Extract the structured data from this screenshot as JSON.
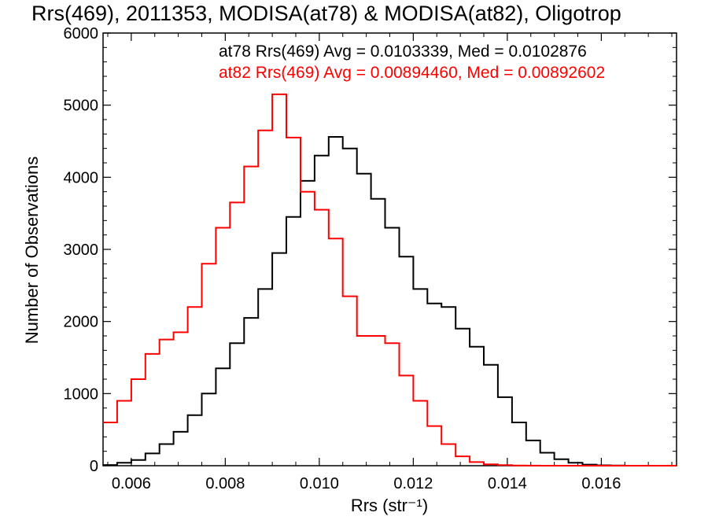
{
  "chart_data": {
    "type": "line",
    "title": "Rrs(469), 2011353, MODISA(at78) & MODISA(at82), Oligotrop",
    "xlabel": "Rrs (str⁻¹)",
    "ylabel": "Number of Observations",
    "xlim": [
      0.0054,
      0.0176
    ],
    "ylim": [
      0,
      6000
    ],
    "xticks": [
      0.006,
      0.008,
      0.01,
      0.012,
      0.014,
      0.016
    ],
    "xtick_labels": [
      "0.006",
      "0.008",
      "0.010",
      "0.012",
      "0.014",
      "0.016"
    ],
    "yticks": [
      0,
      1000,
      2000,
      3000,
      4000,
      5000,
      6000
    ],
    "ytick_labels": [
      "0",
      "1000",
      "2000",
      "3000",
      "4000",
      "5000",
      "6000"
    ],
    "grid": false,
    "series": [
      {
        "name": "at78",
        "color": "#000000",
        "annotation": "at78 Rrs(469) Avg = 0.0103339, Med = 0.0102876",
        "x": [
          0.0054,
          0.0057,
          0.006,
          0.0063,
          0.0066,
          0.0069,
          0.0072,
          0.0075,
          0.0078,
          0.0081,
          0.0084,
          0.0087,
          0.009,
          0.0093,
          0.0096,
          0.0099,
          0.0102,
          0.0105,
          0.0108,
          0.0111,
          0.0114,
          0.0117,
          0.012,
          0.0123,
          0.0126,
          0.0129,
          0.0132,
          0.0135,
          0.0138,
          0.0141,
          0.0144,
          0.0147,
          0.015,
          0.0153,
          0.0156,
          0.0159,
          0.0162,
          0.0165,
          0.0168,
          0.0171,
          0.0176
        ],
        "y": [
          10,
          40,
          80,
          170,
          300,
          470,
          700,
          1000,
          1350,
          1700,
          2050,
          2450,
          2950,
          3450,
          3950,
          4300,
          4560,
          4400,
          4050,
          3700,
          3300,
          2900,
          2450,
          2250,
          2200,
          1900,
          1650,
          1400,
          950,
          600,
          350,
          180,
          90,
          40,
          15,
          5,
          2,
          0,
          0,
          0,
          0
        ]
      },
      {
        "name": "at82",
        "color": "#ff0000",
        "annotation": "at82 Rrs(469) Avg = 0.00894460, Med = 0.00892602",
        "x": [
          0.0054,
          0.0057,
          0.006,
          0.0063,
          0.0066,
          0.0069,
          0.0072,
          0.0075,
          0.0078,
          0.0081,
          0.0084,
          0.0087,
          0.009,
          0.0093,
          0.0096,
          0.0099,
          0.0102,
          0.0105,
          0.0108,
          0.0111,
          0.0114,
          0.0117,
          0.012,
          0.0123,
          0.0126,
          0.0129,
          0.0132,
          0.0135,
          0.0138,
          0.0141,
          0.0144,
          0.0147,
          0.015,
          0.0153,
          0.0156,
          0.0159,
          0.0162,
          0.0165,
          0.0168,
          0.0171,
          0.0176
        ],
        "y": [
          600,
          900,
          1200,
          1550,
          1750,
          1850,
          2200,
          2800,
          3300,
          3650,
          4150,
          4650,
          5150,
          4550,
          3800,
          3550,
          3150,
          2350,
          1800,
          1800,
          1700,
          1250,
          900,
          550,
          300,
          130,
          50,
          20,
          8,
          3,
          1,
          0,
          0,
          0,
          0,
          0,
          0,
          0,
          0,
          0,
          0
        ]
      }
    ]
  }
}
